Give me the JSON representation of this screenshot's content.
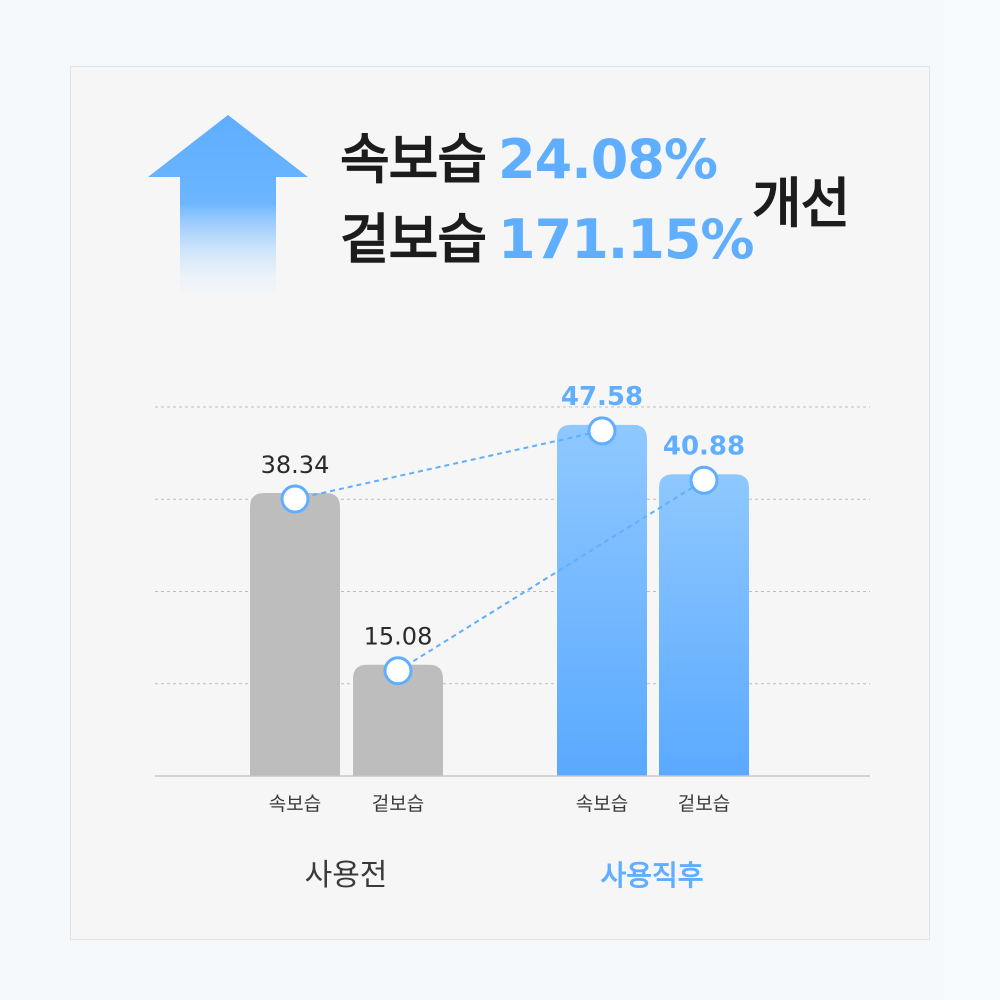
{
  "headline": {
    "rows": [
      {
        "label": "속보습",
        "value": "24.08%"
      },
      {
        "label": "겉보습",
        "value": "171.15%"
      }
    ],
    "suffix": "개선"
  },
  "colors": {
    "accent": "#5faeff",
    "bar_before": "#bdbdbd",
    "bar_after_top": "#8fc8ff",
    "bar_after_bottom": "#5aa9ff",
    "text_dark": "#1c1c1c"
  },
  "chart_data": {
    "type": "bar",
    "groups": [
      {
        "name": "사용전",
        "categories": [
          "속보습",
          "겉보습"
        ],
        "values": [
          38.34,
          15.08
        ],
        "value_labels": [
          "38.34",
          "15.08"
        ]
      },
      {
        "name": "사용직후",
        "categories": [
          "속보습",
          "겉보습"
        ],
        "values": [
          47.58,
          40.88
        ],
        "value_labels": [
          "47.58",
          "40.88"
        ]
      }
    ],
    "ylim": [
      0,
      50
    ],
    "grid": true,
    "connectors": [
      {
        "from": [
          0,
          0
        ],
        "to": [
          1,
          0
        ]
      },
      {
        "from": [
          0,
          1
        ],
        "to": [
          1,
          1
        ]
      }
    ]
  }
}
